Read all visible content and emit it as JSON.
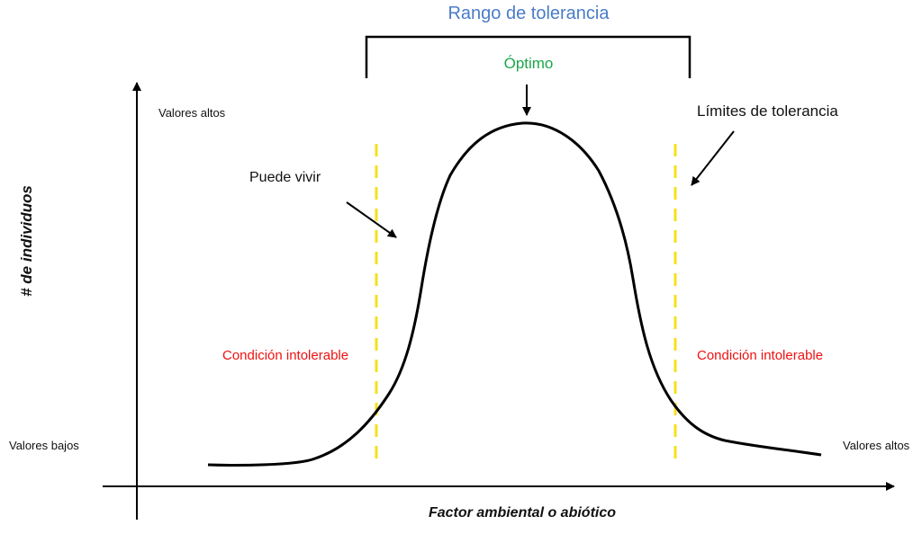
{
  "range_title": "Rango de tolerancia",
  "optimum_label": "Óptimo",
  "y_axis_title": "# de individuos",
  "x_axis_title": "Factor ambiental o abiótico",
  "y_high_label": "Valores altos",
  "x_low_label": "Valores bajos",
  "x_high_label": "Valores altos",
  "can_live_label": "Puede vivir",
  "limits_label": "Límites de tolerancia",
  "intolerable_left": "Condición intolerable",
  "intolerable_right": "Condición intolerable",
  "colors": {
    "range_title": "#4a7cc9",
    "optimum": "#1aa84a",
    "intolerable": "#ee1111",
    "limit_lines": "#f5e11a",
    "curve": "#000000"
  }
}
